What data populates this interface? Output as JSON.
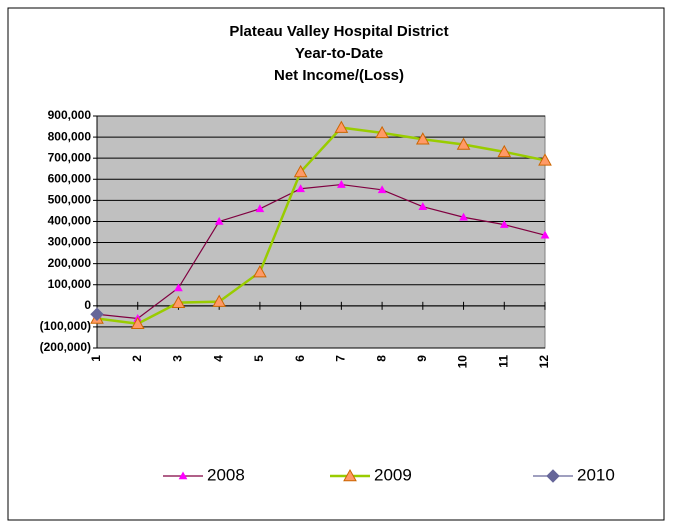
{
  "chart_data": {
    "type": "line",
    "title": [
      "Plateau Valley Hospital District",
      "Year-to-Date",
      "Net Income/(Loss)"
    ],
    "categories": [
      "1",
      "2",
      "3",
      "4",
      "5",
      "6",
      "7",
      "8",
      "9",
      "10",
      "11",
      "12"
    ],
    "series": [
      {
        "name": "2008",
        "color": "#800040",
        "marker_color": "#ff00ff",
        "marker": "triangle",
        "values": [
          -40000,
          -60000,
          85000,
          400000,
          460000,
          555000,
          575000,
          550000,
          470000,
          420000,
          385000,
          335000
        ]
      },
      {
        "name": "2009",
        "color": "#99cc00",
        "marker_color": "#ff9966",
        "marker": "triangle",
        "values": [
          -60000,
          -85000,
          15000,
          20000,
          160000,
          635000,
          845000,
          820000,
          790000,
          765000,
          730000,
          690000
        ]
      },
      {
        "name": "2010",
        "color": "#666699",
        "marker_color": "#666699",
        "marker": "diamond",
        "values": [
          -40000,
          null,
          null,
          null,
          null,
          null,
          null,
          null,
          null,
          null,
          null,
          null
        ]
      }
    ],
    "ylim": [
      -200000,
      900000
    ],
    "yticks": [
      {
        "value": -200000,
        "label": "(200,000)"
      },
      {
        "value": -100000,
        "label": "(100,000)"
      },
      0,
      {
        "value": 100000,
        "label": "100,000"
      },
      {
        "value": 200000,
        "label": "200,000"
      },
      {
        "value": 300000,
        "label": "300,000"
      },
      {
        "value": 400000,
        "label": "400,000"
      },
      {
        "value": 500000,
        "label": "500,000"
      },
      {
        "value": 600000,
        "label": "600,000"
      },
      {
        "value": 700000,
        "label": "700,000"
      },
      {
        "value": 800000,
        "label": "800,000"
      },
      {
        "value": 900000,
        "label": "900,000"
      }
    ],
    "grid": true,
    "plot_background": "#c0c0c0",
    "legend": "bottom"
  }
}
